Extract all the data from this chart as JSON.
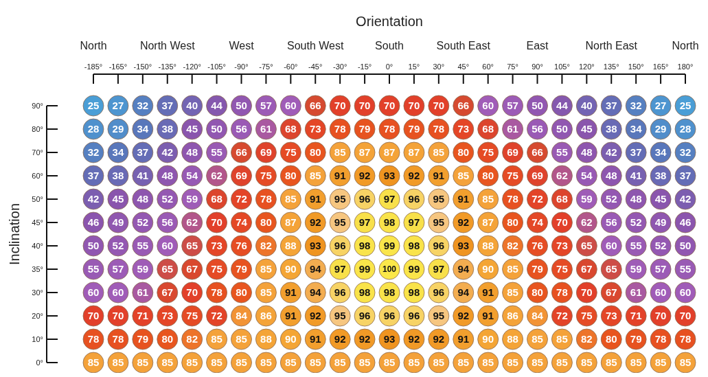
{
  "chart_data": {
    "type": "heatmap",
    "xlabel": "Orientation",
    "ylabel": "Inclination",
    "categories": [
      "-185°",
      "-165°",
      "-150°",
      "-135°",
      "-120°",
      "-105°",
      "-90°",
      "-75°",
      "-60°",
      "-45°",
      "-30°",
      "-15°",
      "0°",
      "15°",
      "30°",
      "45°",
      "60°",
      "75°",
      "90°",
      "105°",
      "120°",
      "135°",
      "150°",
      "165°",
      "180°"
    ],
    "y_categories": [
      "90°",
      "80°",
      "70°",
      "60°",
      "50°",
      "45°",
      "40°",
      "35°",
      "30°",
      "20°",
      "10°",
      "0°"
    ],
    "data_labels": true,
    "annotations": [
      "North",
      "North West",
      "West",
      "South West",
      "South",
      "South East",
      "East",
      "North East",
      "North"
    ],
    "cells": [
      [
        25,
        27,
        32,
        37,
        40,
        44,
        50,
        57,
        60,
        66,
        70,
        70,
        70,
        70,
        70,
        66,
        60,
        57,
        50,
        44,
        40,
        37,
        32,
        27,
        25
      ],
      [
        28,
        29,
        34,
        38,
        45,
        50,
        56,
        61,
        68,
        73,
        78,
        79,
        78,
        79,
        78,
        73,
        68,
        61,
        56,
        50,
        45,
        38,
        34,
        29,
        28
      ],
      [
        32,
        34,
        37,
        42,
        48,
        55,
        66,
        69,
        75,
        80,
        85,
        87,
        87,
        87,
        85,
        80,
        75,
        69,
        66,
        55,
        48,
        42,
        37,
        34,
        32
      ],
      [
        37,
        38,
        41,
        48,
        54,
        62,
        69,
        75,
        80,
        85,
        91,
        92,
        93,
        92,
        91,
        85,
        80,
        75,
        69,
        62,
        54,
        48,
        41,
        38,
        37
      ],
      [
        42,
        45,
        48,
        52,
        59,
        68,
        72,
        78,
        85,
        91,
        95,
        96,
        97,
        96,
        95,
        91,
        85,
        78,
        72,
        68,
        59,
        52,
        48,
        45,
        42
      ],
      [
        46,
        49,
        52,
        56,
        62,
        70,
        74,
        80,
        87,
        92,
        95,
        97,
        98,
        97,
        95,
        92,
        87,
        80,
        74,
        70,
        62,
        56,
        52,
        49,
        46
      ],
      [
        50,
        52,
        55,
        60,
        65,
        73,
        76,
        82,
        88,
        93,
        96,
        98,
        99,
        98,
        96,
        93,
        88,
        82,
        76,
        73,
        65,
        60,
        55,
        52,
        50
      ],
      [
        55,
        57,
        59,
        65,
        67,
        75,
        79,
        85,
        90,
        94,
        97,
        99,
        100,
        99,
        97,
        94,
        90,
        85,
        79,
        75,
        67,
        65,
        59,
        57,
        55
      ],
      [
        60,
        60,
        61,
        67,
        70,
        78,
        80,
        85,
        91,
        94,
        96,
        98,
        98,
        98,
        96,
        94,
        91,
        85,
        80,
        78,
        70,
        67,
        61,
        60,
        60
      ],
      [
        70,
        70,
        71,
        73,
        75,
        72,
        84,
        86,
        91,
        92,
        95,
        96,
        96,
        96,
        95,
        92,
        91,
        86,
        84,
        72,
        75,
        73,
        71,
        70,
        70
      ],
      [
        78,
        78,
        79,
        80,
        82,
        85,
        85,
        88,
        90,
        91,
        92,
        92,
        93,
        92,
        92,
        91,
        90,
        88,
        85,
        85,
        82,
        80,
        79,
        78,
        78
      ],
      [
        85,
        85,
        85,
        85,
        85,
        85,
        85,
        85,
        85,
        85,
        85,
        85,
        85,
        85,
        85,
        85,
        85,
        85,
        85,
        85,
        85,
        85,
        85,
        85,
        85
      ]
    ]
  }
}
